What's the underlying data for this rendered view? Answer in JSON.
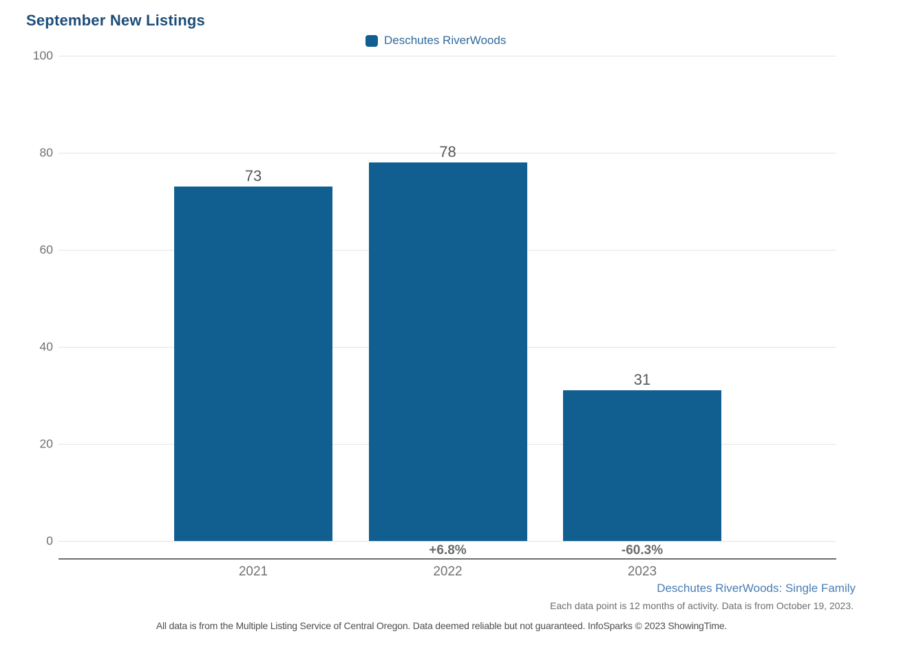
{
  "page": {
    "title": "September New Listings",
    "subtitle": "Deschutes RiverWoods: Single Family",
    "note": "Each data point is 12 months of activity. Data is from October 19, 2023.",
    "footer": "All data is from the Multiple Listing Service of Central Oregon. Data deemed reliable but not guaranteed. InfoSparks © 2023 ShowingTime."
  },
  "legend": {
    "label": "Deschutes RiverWoods",
    "swatch_color": "#115f90"
  },
  "colors": {
    "bar": "#115f90",
    "title_text": "#1d4e79",
    "legend_text": "#31699c",
    "subtitle_text": "#4a7db4",
    "gridline": "#e4e4e4",
    "axis_line": "#6e6e6e"
  },
  "chart_data": {
    "type": "bar",
    "title": "September New Listings",
    "categories": [
      "2021",
      "2022",
      "2023"
    ],
    "series": [
      {
        "name": "Deschutes RiverWoods",
        "values": [
          73,
          78,
          31
        ]
      }
    ],
    "value_labels": [
      "73",
      "78",
      "31"
    ],
    "pct_change_labels": [
      "",
      "+6.8%",
      "-60.3%"
    ],
    "xlabel": "",
    "ylabel": "",
    "ylim": [
      0,
      100
    ],
    "yticks": [
      0,
      20,
      40,
      60,
      80,
      100
    ],
    "grid": true,
    "legend_position": "top-center"
  }
}
